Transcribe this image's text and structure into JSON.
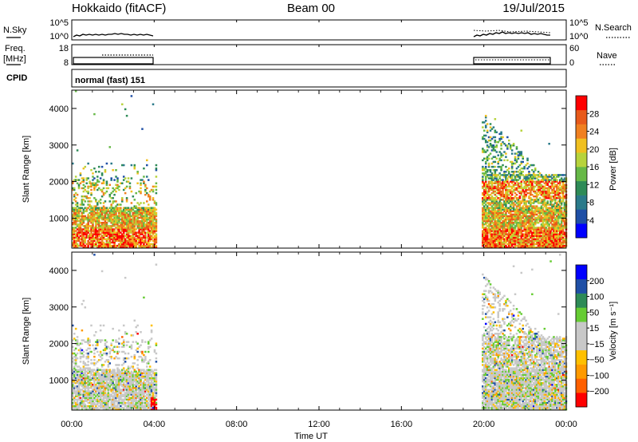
{
  "header": {
    "station": "Hokkaido (fitACF)",
    "beam": "Beam 00",
    "date": "19/Jul/2015"
  },
  "noise_panel": {
    "left_label": "N.Sky",
    "right_label": "N.Search",
    "left_ticks": [
      "10^5",
      "10^0"
    ],
    "right_ticks": [
      "10^5",
      "10^0"
    ]
  },
  "freq_panel": {
    "left_label_line1": "Freq.",
    "left_label_line2": "[MHz]",
    "right_label": "Nave",
    "left_ticks": [
      "18",
      "8"
    ],
    "right_ticks": [
      "60",
      "0"
    ]
  },
  "cpid_panel": {
    "label": "CPID",
    "mode_text": "normal (fast) 151"
  },
  "chart_data": {
    "type": "heatmap",
    "xlabel": "Time UT",
    "x_ticks": [
      "00:00",
      "04:00",
      "08:00",
      "12:00",
      "16:00",
      "20:00",
      "00:00"
    ],
    "x_range_hours": [
      0,
      24
    ],
    "data_intervals_hours": [
      [
        0.0,
        4.1
      ],
      [
        19.9,
        24.0
      ]
    ],
    "panels": [
      {
        "name": "power",
        "ylabel": "Slant Range [km]",
        "y_ticks": [
          "1000",
          "2000",
          "3000",
          "4000"
        ],
        "y_range_km": [
          180,
          4500
        ],
        "colorbar_label": "Power [dB]",
        "colorbar_ticks": [
          "28",
          "24",
          "20",
          "16",
          "12",
          "8",
          "4"
        ],
        "colorbar_range": [
          0,
          32
        ],
        "colors": [
          "#0000ff",
          "#1f4fa6",
          "#2a7a8a",
          "#2e8b57",
          "#66b847",
          "#b7d33c",
          "#f0c020",
          "#f08020",
          "#e85a1a",
          "#ff0000"
        ]
      },
      {
        "name": "velocity",
        "ylabel": "Slant Range [km]",
        "y_ticks": [
          "1000",
          "2000",
          "3000",
          "4000"
        ],
        "y_range_km": [
          180,
          4500
        ],
        "colorbar_label": "Velocity [m s⁻¹]",
        "colorbar_ticks": [
          "200",
          "100",
          "50",
          "15",
          "−15",
          "−50",
          "−100",
          "−200"
        ],
        "colorbar_range": [
          -250,
          250
        ],
        "colors": [
          "#ff0000",
          "#ff6000",
          "#ff9a00",
          "#ffc000",
          "#c8c8c8",
          "#c8c8c8",
          "#66cc33",
          "#2e8b57",
          "#1f4fa6",
          "#0000ff"
        ]
      }
    ]
  }
}
